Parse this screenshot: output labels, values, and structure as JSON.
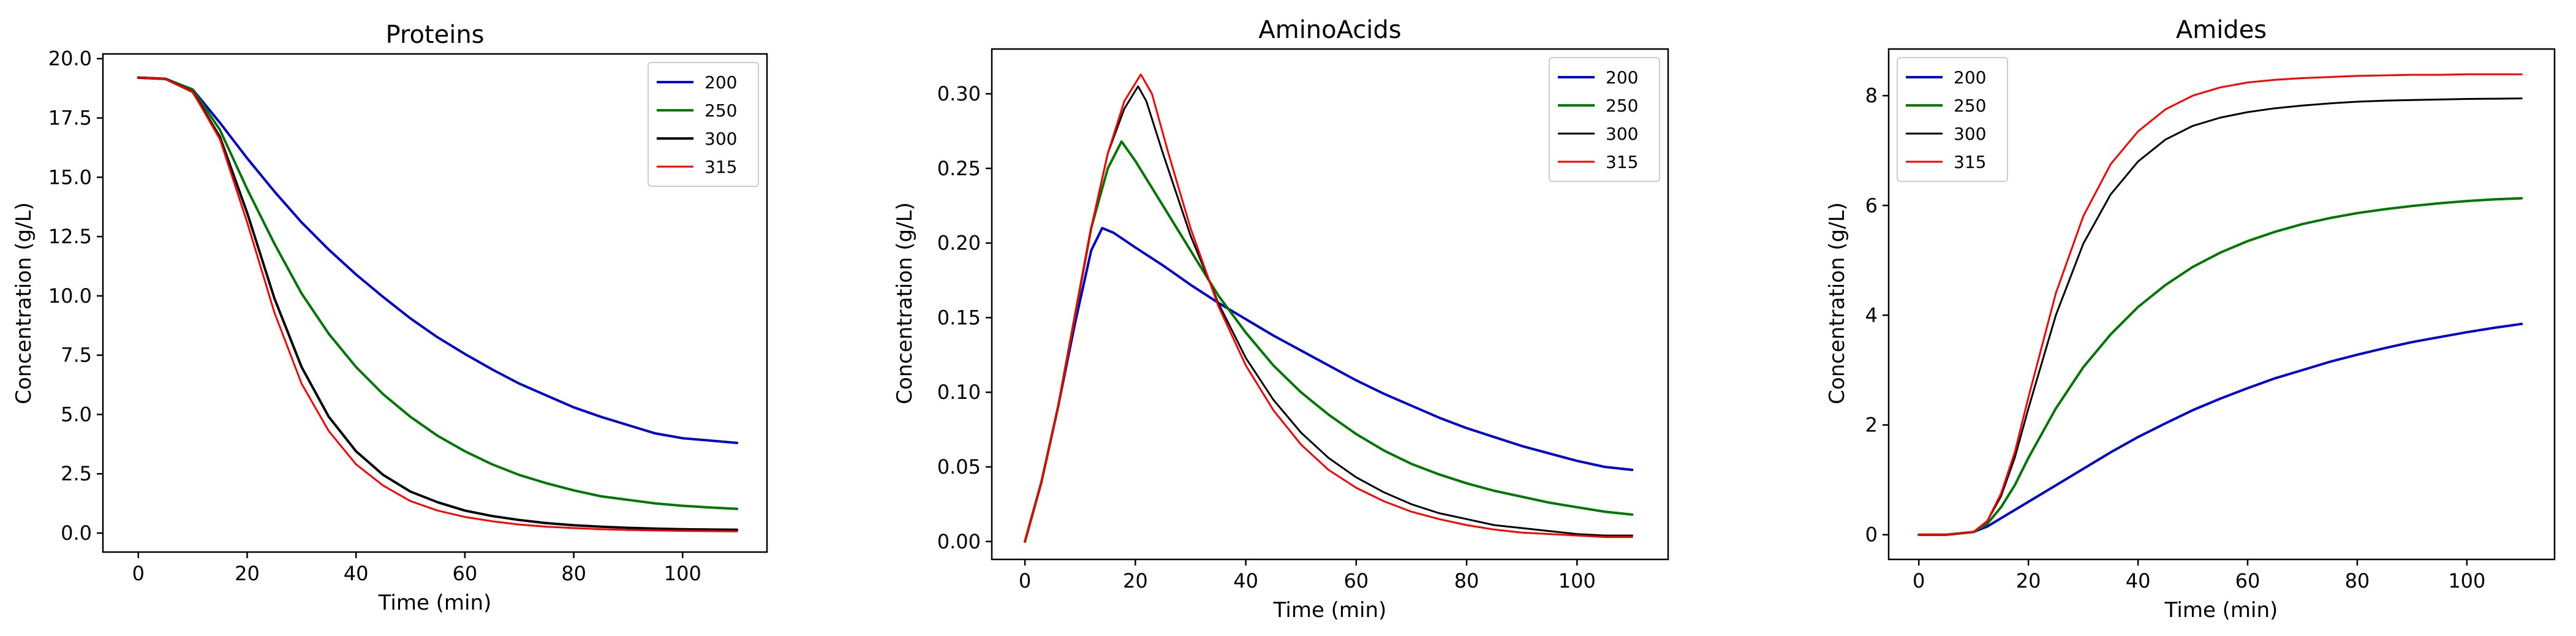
{
  "chart_data": [
    {
      "type": "line",
      "title": "Proteins",
      "xlabel": "Time (min)",
      "ylabel": "Concentration (g/L)",
      "xlim": [
        -6.5,
        115.5
      ],
      "ylim": [
        -0.8,
        20.2
      ],
      "xticks": [
        0,
        20,
        40,
        60,
        80,
        100
      ],
      "xtick_labels": [
        "0",
        "20",
        "40",
        "60",
        "80",
        "100"
      ],
      "yticks": [
        0,
        2.5,
        5,
        7.5,
        10,
        12.5,
        15,
        17.5,
        20
      ],
      "ytick_labels": [
        "0.0",
        "2.5",
        "5.0",
        "7.5",
        "10.0",
        "12.5",
        "15.0",
        "17.5",
        "20.0"
      ],
      "legend_position": "top-right",
      "x": [
        0,
        5,
        10,
        15,
        20,
        25,
        30,
        35,
        40,
        45,
        50,
        55,
        60,
        65,
        70,
        75,
        80,
        85,
        90,
        95,
        100,
        105,
        110
      ],
      "series": [
        {
          "name": "200",
          "color": "#0000cc",
          "width": 2,
          "values": [
            19.2,
            19.15,
            18.7,
            17.3,
            15.8,
            14.4,
            13.1,
            11.95,
            10.9,
            9.95,
            9.05,
            8.25,
            7.55,
            6.9,
            6.3,
            5.8,
            5.3,
            4.9,
            4.55,
            4.2,
            4.0,
            3.9,
            3.8
          ]
        },
        {
          "name": "250",
          "color": "#007700",
          "width": 2,
          "values": [
            19.2,
            19.15,
            18.7,
            17.0,
            14.5,
            12.2,
            10.1,
            8.4,
            7.0,
            5.85,
            4.9,
            4.1,
            3.45,
            2.9,
            2.45,
            2.1,
            1.8,
            1.55,
            1.4,
            1.25,
            1.15,
            1.08,
            1.02
          ]
        },
        {
          "name": "300",
          "color": "#000000",
          "width": 2,
          "values": [
            19.2,
            19.15,
            18.6,
            16.7,
            13.5,
            9.9,
            7.0,
            4.9,
            3.45,
            2.45,
            1.75,
            1.3,
            0.95,
            0.72,
            0.55,
            0.42,
            0.33,
            0.27,
            0.22,
            0.19,
            0.16,
            0.15,
            0.14
          ]
        },
        {
          "name": "315",
          "color": "#ff0000",
          "width": 1,
          "values": [
            19.2,
            19.15,
            18.6,
            16.6,
            13.1,
            9.3,
            6.3,
            4.3,
            2.9,
            2.0,
            1.35,
            0.95,
            0.68,
            0.5,
            0.36,
            0.27,
            0.21,
            0.16,
            0.13,
            0.11,
            0.09,
            0.08,
            0.07
          ]
        }
      ]
    },
    {
      "type": "line",
      "title": "AminoAcids",
      "xlabel": "Time (min)",
      "ylabel": "Concentration (g/L)",
      "xlim": [
        -6,
        116.5
      ],
      "ylim": [
        -0.012,
        0.33
      ],
      "xticks": [
        0,
        20,
        40,
        60,
        80,
        100
      ],
      "xtick_labels": [
        "0",
        "20",
        "40",
        "60",
        "80",
        "100"
      ],
      "yticks": [
        0,
        0.05,
        0.1,
        0.15,
        0.2,
        0.25,
        0.3
      ],
      "ytick_labels": [
        "0.00",
        "0.05",
        "0.10",
        "0.15",
        "0.20",
        "0.25",
        "0.30"
      ],
      "legend_position": "top-right",
      "series": [
        {
          "name": "200",
          "color": "#0000cc",
          "width": 2,
          "x": [
            0,
            3,
            6,
            9,
            12,
            14,
            16,
            20,
            25,
            30,
            35,
            40,
            45,
            50,
            55,
            60,
            65,
            70,
            75,
            80,
            85,
            90,
            95,
            100,
            105,
            110
          ],
          "values": [
            0.0,
            0.04,
            0.09,
            0.145,
            0.195,
            0.21,
            0.207,
            0.197,
            0.185,
            0.172,
            0.16,
            0.149,
            0.138,
            0.128,
            0.118,
            0.108,
            0.099,
            0.091,
            0.083,
            0.076,
            0.07,
            0.064,
            0.059,
            0.054,
            0.05,
            0.048
          ]
        },
        {
          "name": "250",
          "color": "#007700",
          "width": 2,
          "x": [
            0,
            3,
            6,
            9,
            12,
            15,
            17.5,
            20,
            25,
            30,
            35,
            40,
            45,
            50,
            55,
            60,
            65,
            70,
            75,
            80,
            85,
            90,
            95,
            100,
            105,
            110
          ],
          "values": [
            0.0,
            0.04,
            0.09,
            0.15,
            0.21,
            0.25,
            0.268,
            0.255,
            0.225,
            0.195,
            0.165,
            0.14,
            0.118,
            0.1,
            0.085,
            0.072,
            0.061,
            0.052,
            0.045,
            0.039,
            0.034,
            0.03,
            0.026,
            0.023,
            0.02,
            0.018
          ]
        },
        {
          "name": "300",
          "color": "#000000",
          "width": 1,
          "x": [
            0,
            3,
            6,
            9,
            12,
            15,
            18,
            20.5,
            22,
            25,
            30,
            35,
            40,
            45,
            50,
            55,
            60,
            65,
            70,
            75,
            80,
            85,
            90,
            95,
            100,
            105,
            110
          ],
          "values": [
            0.0,
            0.04,
            0.09,
            0.15,
            0.21,
            0.26,
            0.29,
            0.305,
            0.295,
            0.26,
            0.205,
            0.16,
            0.123,
            0.095,
            0.073,
            0.056,
            0.043,
            0.033,
            0.025,
            0.019,
            0.015,
            0.011,
            0.009,
            0.007,
            0.005,
            0.004,
            0.004
          ]
        },
        {
          "name": "315",
          "color": "#ff0000",
          "width": 1,
          "x": [
            0,
            3,
            6,
            9,
            12,
            15,
            18,
            21,
            23,
            26,
            30,
            35,
            40,
            45,
            50,
            55,
            60,
            65,
            70,
            75,
            80,
            85,
            90,
            95,
            100,
            105,
            110
          ],
          "values": [
            0.0,
            0.04,
            0.09,
            0.15,
            0.21,
            0.26,
            0.295,
            0.313,
            0.3,
            0.26,
            0.21,
            0.158,
            0.118,
            0.088,
            0.065,
            0.048,
            0.036,
            0.027,
            0.02,
            0.015,
            0.011,
            0.008,
            0.006,
            0.005,
            0.004,
            0.003,
            0.003
          ]
        }
      ]
    },
    {
      "type": "line",
      "title": "Amides",
      "xlabel": "Time (min)",
      "ylabel": "Concentration (g/L)",
      "xlim": [
        -5.5,
        116
      ],
      "ylim": [
        -0.45,
        8.85
      ],
      "xticks": [
        0,
        20,
        40,
        60,
        80,
        100
      ],
      "xtick_labels": [
        "0",
        "20",
        "40",
        "60",
        "80",
        "100"
      ],
      "yticks": [
        0,
        2,
        4,
        6,
        8
      ],
      "ytick_labels": [
        "0",
        "2",
        "4",
        "6",
        "8"
      ],
      "legend_position": "top-left",
      "x": [
        0,
        5,
        10,
        12.5,
        15,
        17.5,
        20,
        25,
        30,
        35,
        40,
        45,
        50,
        55,
        60,
        65,
        70,
        75,
        80,
        85,
        90,
        95,
        100,
        105,
        110
      ],
      "series": [
        {
          "name": "200",
          "color": "#0000cc",
          "width": 2,
          "values": [
            0.0,
            0.0,
            0.05,
            0.15,
            0.3,
            0.45,
            0.6,
            0.9,
            1.2,
            1.5,
            1.78,
            2.03,
            2.27,
            2.48,
            2.67,
            2.85,
            3.0,
            3.15,
            3.28,
            3.4,
            3.51,
            3.6,
            3.69,
            3.77,
            3.84
          ]
        },
        {
          "name": "250",
          "color": "#007700",
          "width": 2,
          "values": [
            0.0,
            0.0,
            0.05,
            0.2,
            0.5,
            0.9,
            1.4,
            2.3,
            3.05,
            3.65,
            4.15,
            4.55,
            4.88,
            5.14,
            5.35,
            5.52,
            5.66,
            5.77,
            5.86,
            5.93,
            5.99,
            6.04,
            6.08,
            6.11,
            6.13
          ]
        },
        {
          "name": "300",
          "color": "#000000",
          "width": 1,
          "values": [
            0.0,
            0.0,
            0.05,
            0.25,
            0.7,
            1.4,
            2.3,
            4.0,
            5.3,
            6.2,
            6.8,
            7.2,
            7.45,
            7.6,
            7.7,
            7.77,
            7.82,
            7.86,
            7.89,
            7.91,
            7.92,
            7.93,
            7.94,
            7.945,
            7.95
          ]
        },
        {
          "name": "315",
          "color": "#ff0000",
          "width": 1,
          "values": [
            0.0,
            0.0,
            0.05,
            0.25,
            0.75,
            1.5,
            2.5,
            4.4,
            5.8,
            6.75,
            7.35,
            7.75,
            8.0,
            8.15,
            8.24,
            8.29,
            8.32,
            8.34,
            8.36,
            8.37,
            8.38,
            8.38,
            8.39,
            8.39,
            8.39
          ]
        }
      ]
    }
  ]
}
